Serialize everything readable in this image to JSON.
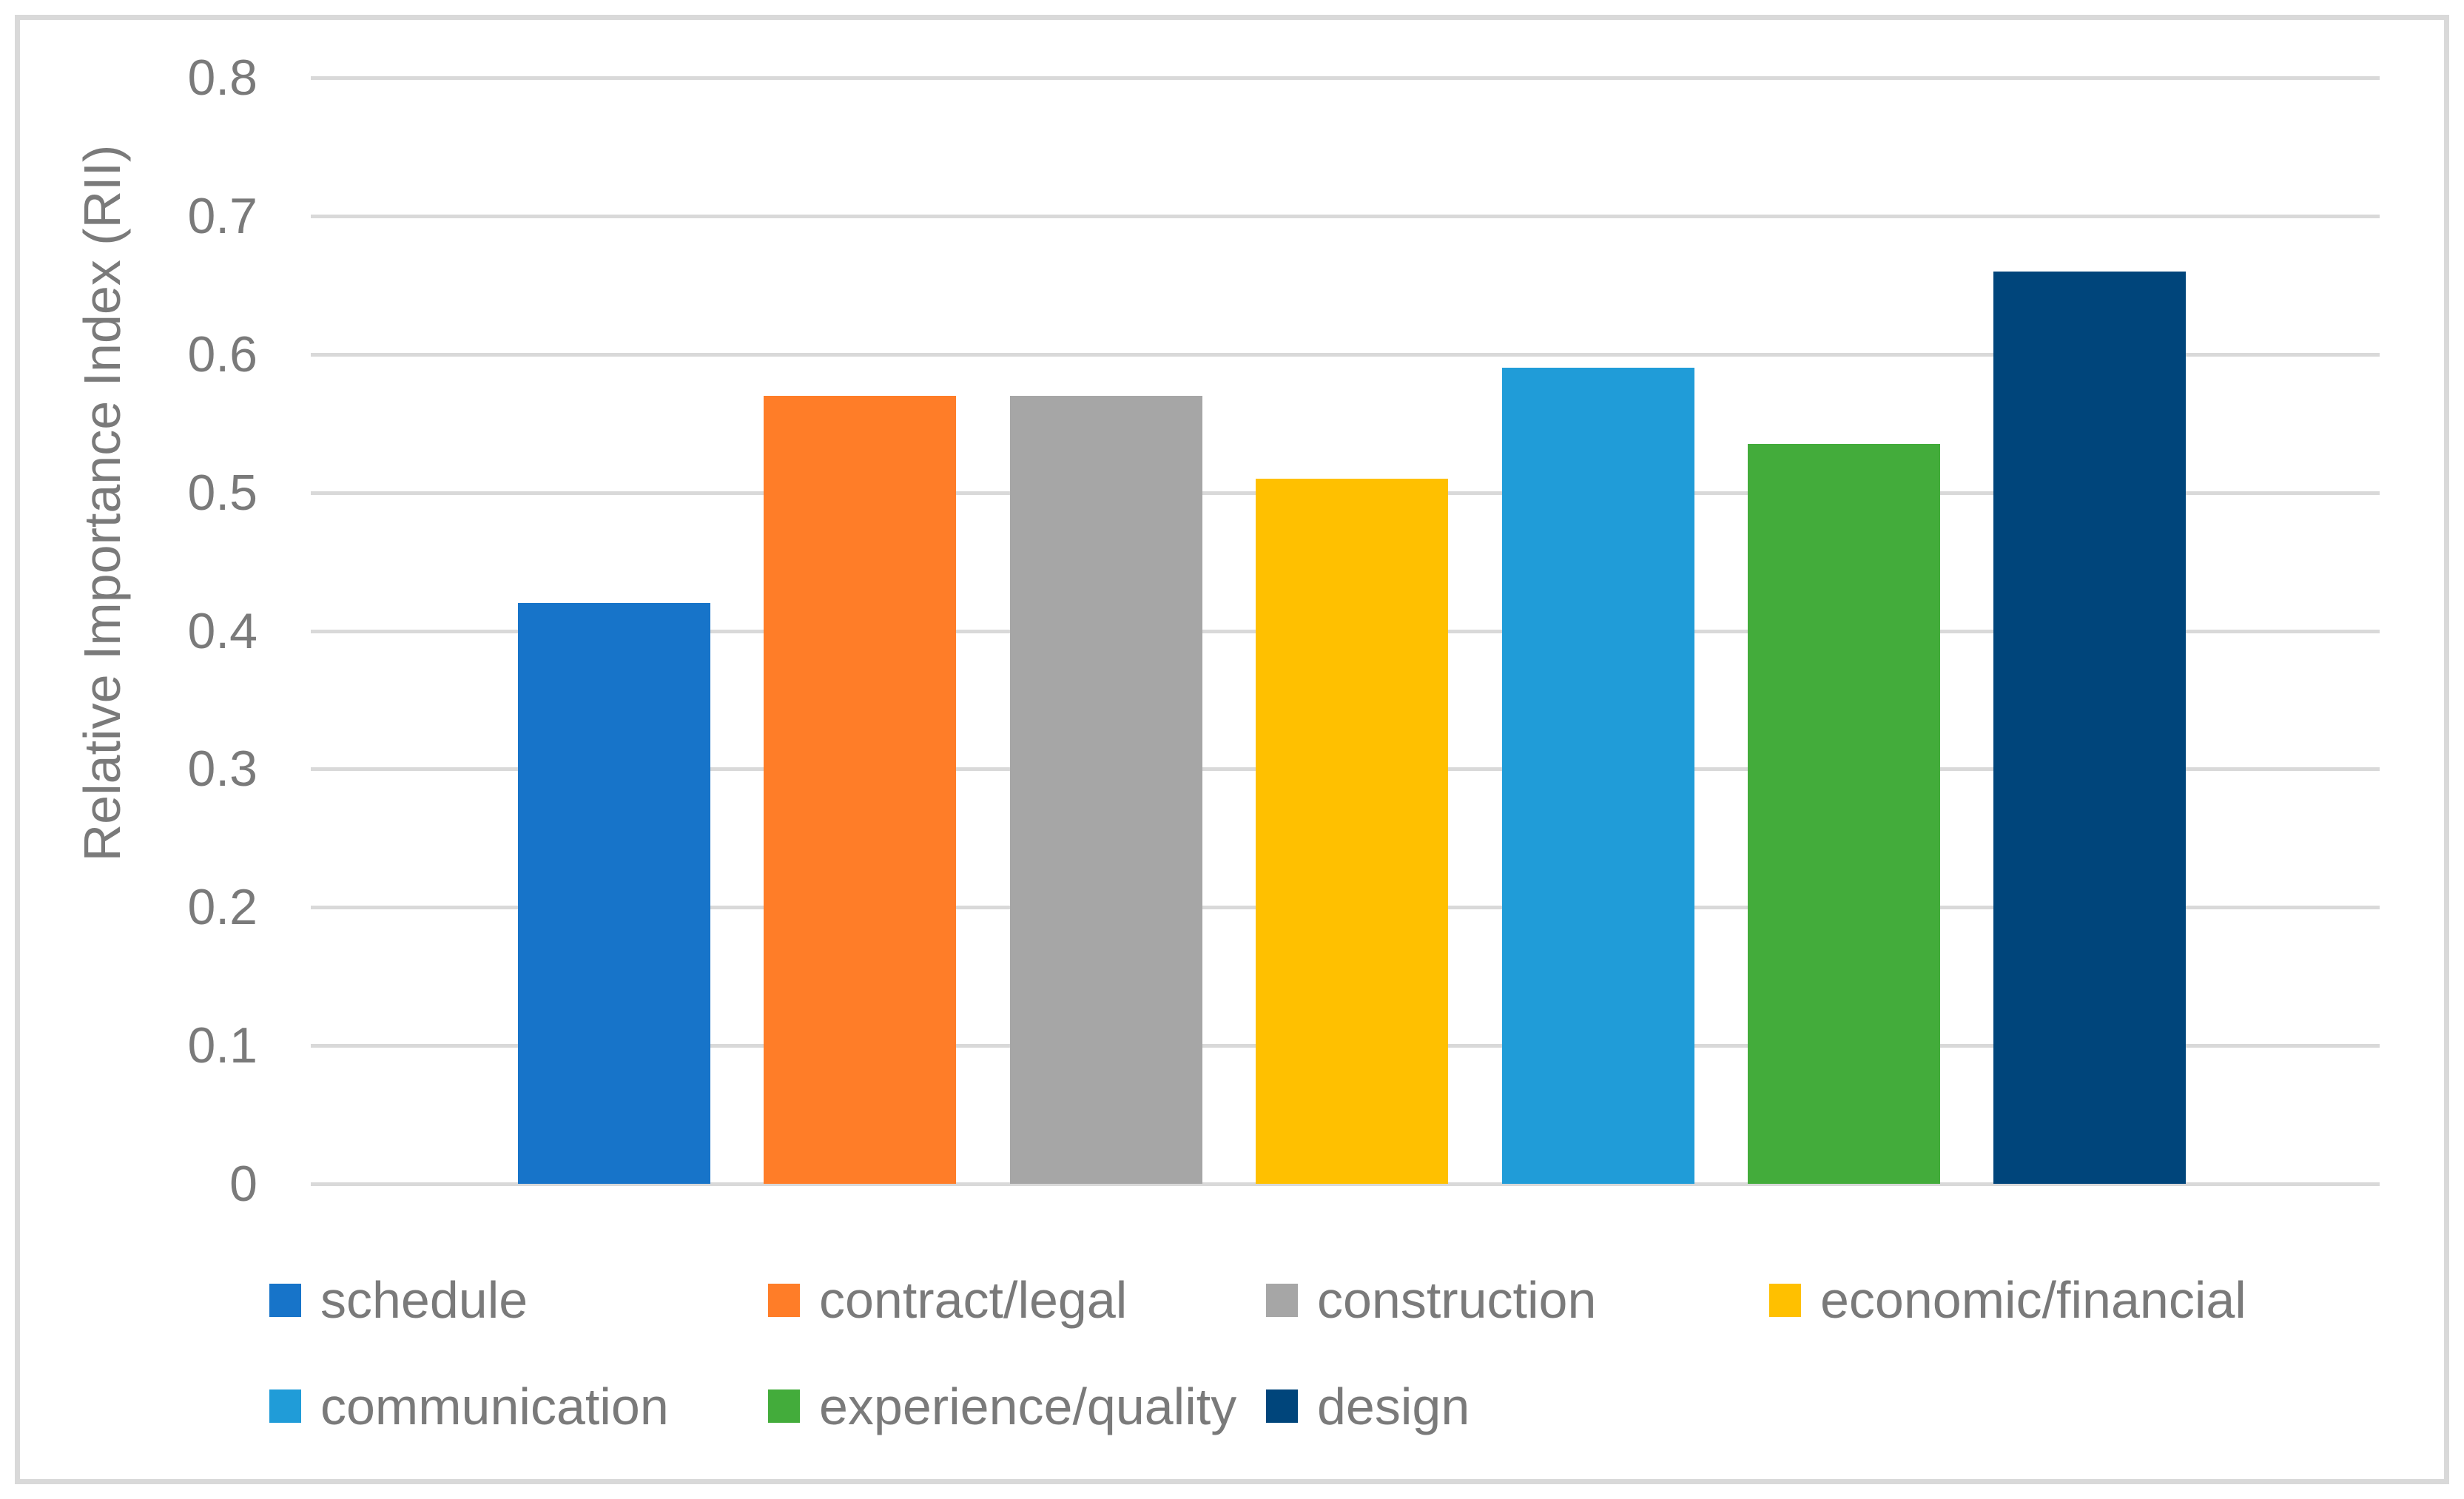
{
  "chart_data": {
    "type": "bar",
    "title": "",
    "xlabel": "",
    "ylabel": "Relative Importance Index (RII)",
    "ylim": [
      0,
      0.8
    ],
    "grid": true,
    "legend_position": "bottom",
    "yticks": [
      0,
      0.1,
      0.2,
      0.3,
      0.4,
      0.5,
      0.6,
      0.7,
      0.8
    ],
    "ytick_labels": [
      "0",
      "0.1",
      "0.2",
      "0.3",
      "0.4",
      "0.5",
      "0.6",
      "0.7",
      "0.8"
    ],
    "categories": [
      "schedule",
      "contract/legal",
      "construction",
      "economic/financial",
      "communication",
      "experience/quality",
      "design"
    ],
    "values": [
      0.42,
      0.57,
      0.57,
      0.51,
      0.59,
      0.535,
      0.66
    ],
    "bar_colors": [
      "#1774C9",
      "#FF7D28",
      "#A6A6A6",
      "#FFC000",
      "#209CD8",
      "#43AC3B",
      "#00457B"
    ],
    "legend_rows": [
      [
        "schedule",
        "contract/legal",
        "construction",
        "economic/financial"
      ],
      [
        "communication",
        "experience/quality",
        "design"
      ]
    ]
  },
  "styles": {
    "gridline_color": "#D9D9D9",
    "frame_border_color": "#D9D9D9",
    "axis_text_color": "#7A7A7A",
    "legend_text_color": "#7A7A7A",
    "background_color": "#FFFFFF"
  }
}
